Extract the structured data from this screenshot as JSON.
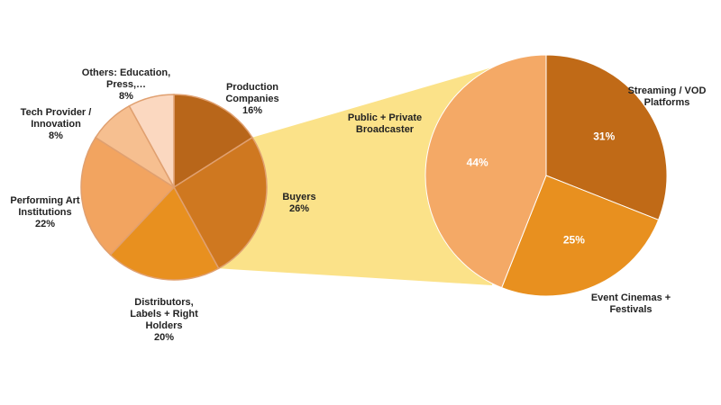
{
  "chart_data": [
    {
      "type": "pie",
      "slices": [
        {
          "label": [
            "Production",
            "Companies",
            "16%"
          ],
          "value": 16,
          "color": "#b8661a"
        },
        {
          "label": [
            "Buyers",
            "26%"
          ],
          "value": 26,
          "color": "#cf7820"
        },
        {
          "label": [
            "Distributors,",
            "Labels + Right",
            "Holders",
            "20%"
          ],
          "value": 20,
          "color": "#e8901f"
        },
        {
          "label": [
            "Performing Art",
            "Institutions",
            "22%"
          ],
          "value": 22,
          "color": "#f2a460"
        },
        {
          "label": [
            "Tech Provider /",
            "Innovation",
            "8%"
          ],
          "value": 8,
          "color": "#f6bf90"
        },
        {
          "label": [
            "Others: Education,",
            "Press,…",
            "8%"
          ],
          "value": 8,
          "color": "#fbd8c0"
        }
      ],
      "exploded_slice": "Buyers"
    },
    {
      "type": "pie",
      "slices": [
        {
          "label": [
            "Streaming / VOD",
            "Platforms"
          ],
          "value": 31,
          "display": "31%",
          "color": "#c06a17"
        },
        {
          "label": [
            "Event Cinemas +",
            "Festivals"
          ],
          "value": 25,
          "display": "25%",
          "color": "#e8901f"
        },
        {
          "label": [
            "Public + Private",
            "Broadcaster"
          ],
          "value": 44,
          "display": "44%",
          "color": "#f4a966"
        }
      ]
    }
  ],
  "colors": {
    "connector": "#fbe289",
    "slice_border": "#e0a070"
  }
}
